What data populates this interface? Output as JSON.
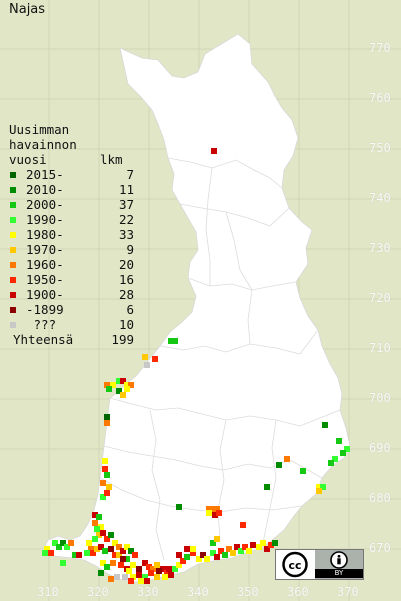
{
  "title": "Najas",
  "legend": {
    "header_line1": "Uusimman",
    "header_line2": "havainnon",
    "header_col1": "vuosi",
    "header_col2": "lkm",
    "items": [
      {
        "label": "2015-",
        "count": "7",
        "color": "#006400"
      },
      {
        "label": "2010-",
        "count": "11",
        "color": "#008c00"
      },
      {
        "label": "2000-",
        "count": "37",
        "color": "#14c814"
      },
      {
        "label": "1990-",
        "count": "22",
        "color": "#32ff32"
      },
      {
        "label": "1980-",
        "count": "33",
        "color": "#ffff00"
      },
      {
        "label": "1970-",
        "count": "9",
        "color": "#ffc800"
      },
      {
        "label": "1960-",
        "count": "20",
        "color": "#ff7800"
      },
      {
        "label": "1950-",
        "count": "16",
        "color": "#ff2800"
      },
      {
        "label": "1900-",
        "count": "28",
        "color": "#c80000"
      },
      {
        "label": "-1899",
        "count": "6",
        "color": "#8c0000"
      },
      {
        "label": " ???",
        "count": "10",
        "color": "#c8c8c8"
      }
    ],
    "total_label": "Yhteensä",
    "total_count": "199"
  },
  "axes": {
    "y_ticks": [
      "770",
      "760",
      "750",
      "740",
      "730",
      "720",
      "710",
      "700",
      "690",
      "680",
      "670"
    ],
    "x_ticks": [
      "310",
      "320",
      "330",
      "340",
      "350",
      "360",
      "370"
    ]
  },
  "license": {
    "badge_text": "BY",
    "icon": "creative-commons-by-icon"
  },
  "colors": {
    "background": "#e1e6c6",
    "land": "#ffffff",
    "grid": "#cfd3b4",
    "borders": "#d6d6d6"
  }
}
